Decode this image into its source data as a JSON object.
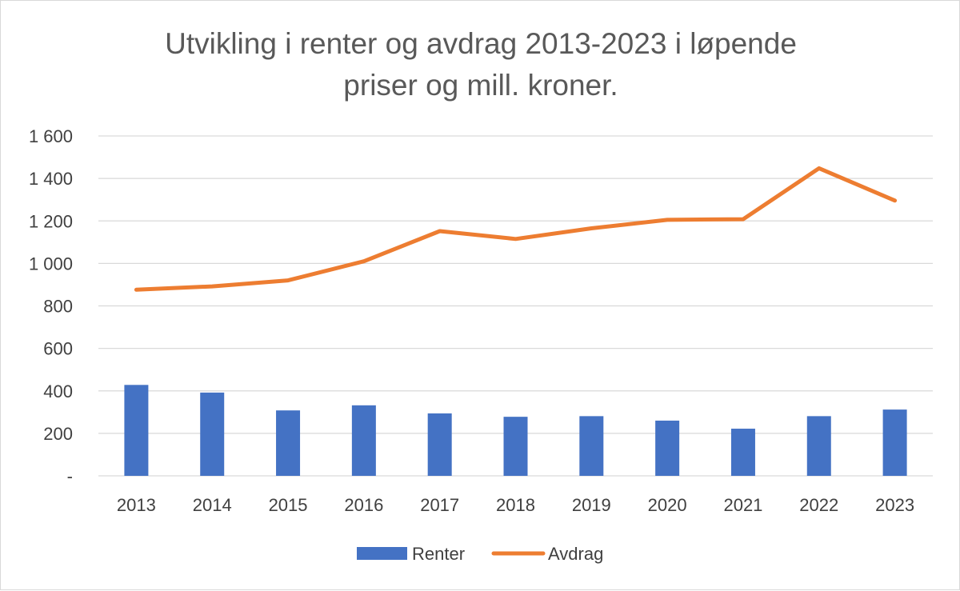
{
  "chart_data": {
    "type": "bar",
    "title_lines": [
      "Utvikling i renter og avdrag 2013-2023 i løpende",
      "priser og mill. kroner."
    ],
    "categories": [
      "2013",
      "2014",
      "2015",
      "2016",
      "2017",
      "2018",
      "2019",
      "2020",
      "2021",
      "2022",
      "2023"
    ],
    "series": [
      {
        "name": "Renter",
        "type": "bar",
        "color": "#4472C4",
        "values": [
          428,
          392,
          308,
          332,
          294,
          278,
          281,
          260,
          222,
          281,
          312
        ]
      },
      {
        "name": "Avdrag",
        "type": "line",
        "color": "#ED7D31",
        "values": [
          876,
          892,
          920,
          1010,
          1152,
          1115,
          1165,
          1205,
          1208,
          1448,
          1296
        ]
      }
    ],
    "y_ticks": [
      {
        "value": 0,
        "label": "-"
      },
      {
        "value": 200,
        "label": "200"
      },
      {
        "value": 400,
        "label": "400"
      },
      {
        "value": 600,
        "label": "600"
      },
      {
        "value": 800,
        "label": "800"
      },
      {
        "value": 1000,
        "label": "1 000"
      },
      {
        "value": 1200,
        "label": "1 200"
      },
      {
        "value": 1400,
        "label": "1 400"
      },
      {
        "value": 1600,
        "label": "1 600"
      }
    ],
    "ylim": [
      0,
      1600
    ],
    "grid": true,
    "legend_position": "bottom"
  }
}
